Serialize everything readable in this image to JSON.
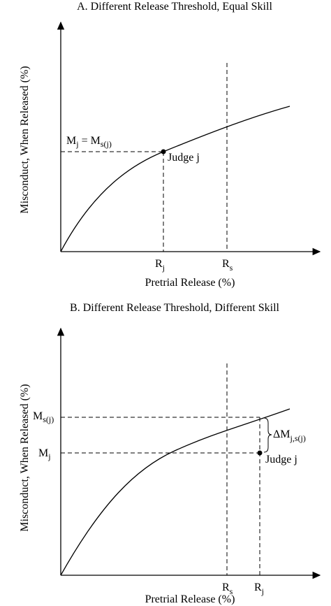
{
  "panel_a": {
    "title": "A. Different Release Threshold, Equal Skill",
    "y_label": "Misconduct, When Released (%)",
    "x_label": "Pretrial Release (%)",
    "m_label": [
      {
        "text": "M",
        "sub": "j"
      },
      {
        "text": " = M",
        "sub": "s(j)"
      }
    ],
    "point_label": "Judge j",
    "rj": {
      "text": "R",
      "sub": "j"
    },
    "rs": {
      "text": "R",
      "sub": "s"
    }
  },
  "panel_b": {
    "title": "B. Different Release Threshold, Different Skill",
    "y_label": "Misconduct, When Released (%)",
    "x_label": "Pretrial Release (%)",
    "ms": {
      "text": "M",
      "sub": "s(j)"
    },
    "mj": {
      "text": "M",
      "sub": "j"
    },
    "delta": {
      "text": "ΔM",
      "sub": "j,s(j)"
    },
    "point_label": "Judge j",
    "rs": {
      "text": "R",
      "sub": "s"
    },
    "rj": {
      "text": "R",
      "sub": "j"
    }
  }
}
